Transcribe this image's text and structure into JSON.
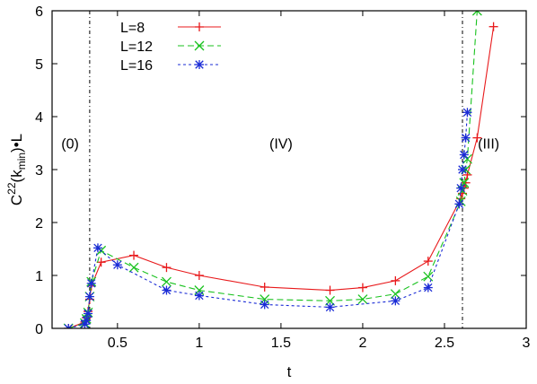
{
  "chart_data": {
    "type": "line",
    "xlabel": "t",
    "ylabel": "C22(kmin)•L",
    "ylabel_parts": {
      "base": "C",
      "sup": "22",
      "mid": "(k",
      "sub": "min",
      "tail": ")•L"
    },
    "xlim": [
      0.1,
      3.0
    ],
    "ylim": [
      0,
      6
    ],
    "xticks": [
      0.5,
      1,
      1.5,
      2,
      2.5,
      3
    ],
    "xtick_labels": [
      "0.5",
      "1",
      "1.5",
      "2",
      "2.5",
      "3"
    ],
    "yticks": [
      0,
      1,
      2,
      3,
      4,
      5,
      6
    ],
    "ytick_labels": [
      "0",
      "1",
      "2",
      "3",
      "4",
      "5",
      "6"
    ],
    "grid": false,
    "legend_position": "top-left",
    "vlines": [
      0.33,
      2.61
    ],
    "annotations": [
      {
        "text": "(0)",
        "x": 0.21,
        "y": 3.5
      },
      {
        "text": "(IV)",
        "x": 1.5,
        "y": 3.5
      },
      {
        "text": "(III)",
        "x": 2.77,
        "y": 3.5
      }
    ],
    "series": [
      {
        "name": "L=8",
        "color": "#e8191b",
        "marker": "plus",
        "dash": "solid",
        "x": [
          0.2,
          0.3,
          0.31,
          0.32,
          0.33,
          0.34,
          0.4,
          0.6,
          0.8,
          1.0,
          1.4,
          1.8,
          2.0,
          2.2,
          2.4,
          2.6,
          2.61,
          2.62,
          2.63,
          2.64,
          2.7,
          2.8
        ],
        "y": [
          0.0,
          0.12,
          0.2,
          0.32,
          0.55,
          0.8,
          1.25,
          1.38,
          1.15,
          1.0,
          0.78,
          0.72,
          0.77,
          0.9,
          1.27,
          2.45,
          2.55,
          2.65,
          2.75,
          2.9,
          3.6,
          5.7
        ]
      },
      {
        "name": "L=12",
        "color": "#19c21e",
        "marker": "cross",
        "dash": "dashed",
        "x": [
          0.2,
          0.3,
          0.31,
          0.32,
          0.33,
          0.34,
          0.4,
          0.6,
          0.8,
          1.0,
          1.4,
          1.8,
          2.0,
          2.2,
          2.4,
          2.6,
          2.61,
          2.62,
          2.63,
          2.64,
          2.7
        ],
        "y": [
          0.0,
          0.1,
          0.18,
          0.3,
          0.6,
          0.88,
          1.47,
          1.15,
          0.88,
          0.72,
          0.55,
          0.52,
          0.55,
          0.65,
          0.98,
          2.4,
          2.6,
          2.75,
          3.0,
          3.2,
          6.0
        ]
      },
      {
        "name": "L=16",
        "color": "#1a2bd6",
        "marker": "star",
        "dash": "dotted",
        "x": [
          0.2,
          0.3,
          0.31,
          0.32,
          0.33,
          0.34,
          0.38,
          0.5,
          0.8,
          1.0,
          1.4,
          1.8,
          2.2,
          2.4,
          2.59,
          2.6,
          2.61,
          2.62,
          2.63,
          2.64
        ],
        "y": [
          0.0,
          0.08,
          0.15,
          0.28,
          0.6,
          0.85,
          1.52,
          1.2,
          0.72,
          0.62,
          0.45,
          0.4,
          0.52,
          0.77,
          2.35,
          2.65,
          3.0,
          3.28,
          3.6,
          4.08
        ]
      }
    ]
  }
}
